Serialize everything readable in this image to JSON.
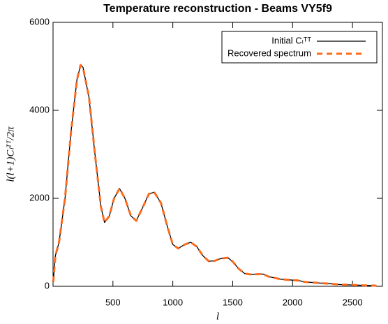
{
  "chart_data": {
    "type": "line",
    "title": "Temperature reconstruction - Beams VY5f9",
    "x_label": "l",
    "y_label": "l(l+1)Cₗᵀᵀ/2π",
    "x": [
      2,
      20,
      50,
      100,
      150,
      200,
      230,
      250,
      300,
      350,
      400,
      430,
      470,
      510,
      555,
      600,
      650,
      695,
      750,
      800,
      845,
      900,
      950,
      1000,
      1045,
      1100,
      1150,
      1200,
      1250,
      1300,
      1350,
      1400,
      1460,
      1500,
      1550,
      1600,
      1650,
      1700,
      1750,
      1800,
      1900,
      2000,
      2050,
      2100,
      2200,
      2300,
      2400,
      2500,
      2600,
      2700
    ],
    "series": [
      {
        "name": "Initial Cₗᵀᵀ",
        "color": "#000000",
        "dash": false,
        "values": [
          100,
          700,
          1000,
          2000,
          3500,
          4700,
          5030,
          4980,
          4300,
          3000,
          1800,
          1450,
          1600,
          2000,
          2220,
          2000,
          1600,
          1490,
          1800,
          2100,
          2140,
          1900,
          1400,
          950,
          860,
          950,
          1000,
          900,
          700,
          570,
          580,
          630,
          650,
          560,
          400,
          290,
          270,
          275,
          280,
          220,
          160,
          140,
          130,
          100,
          80,
          60,
          40,
          30,
          20,
          15
        ]
      },
      {
        "name": "Recovered spectrum",
        "color": "#ff6a1a",
        "dash": true,
        "values": [
          100,
          700,
          1000,
          2000,
          3500,
          4700,
          5030,
          4980,
          4300,
          3000,
          1800,
          1450,
          1600,
          2000,
          2220,
          2000,
          1600,
          1490,
          1800,
          2100,
          2140,
          1900,
          1400,
          950,
          860,
          950,
          1000,
          900,
          700,
          570,
          580,
          630,
          650,
          560,
          400,
          290,
          270,
          275,
          280,
          220,
          160,
          140,
          130,
          100,
          80,
          60,
          40,
          30,
          20,
          15
        ]
      }
    ],
    "xlim": [
      0,
      2750
    ],
    "ylim": [
      0,
      6000
    ],
    "xticks": [
      500,
      1000,
      1500,
      2000,
      2500
    ],
    "yticks": [
      0,
      2000,
      4000,
      6000
    ],
    "legend": "upper right"
  }
}
